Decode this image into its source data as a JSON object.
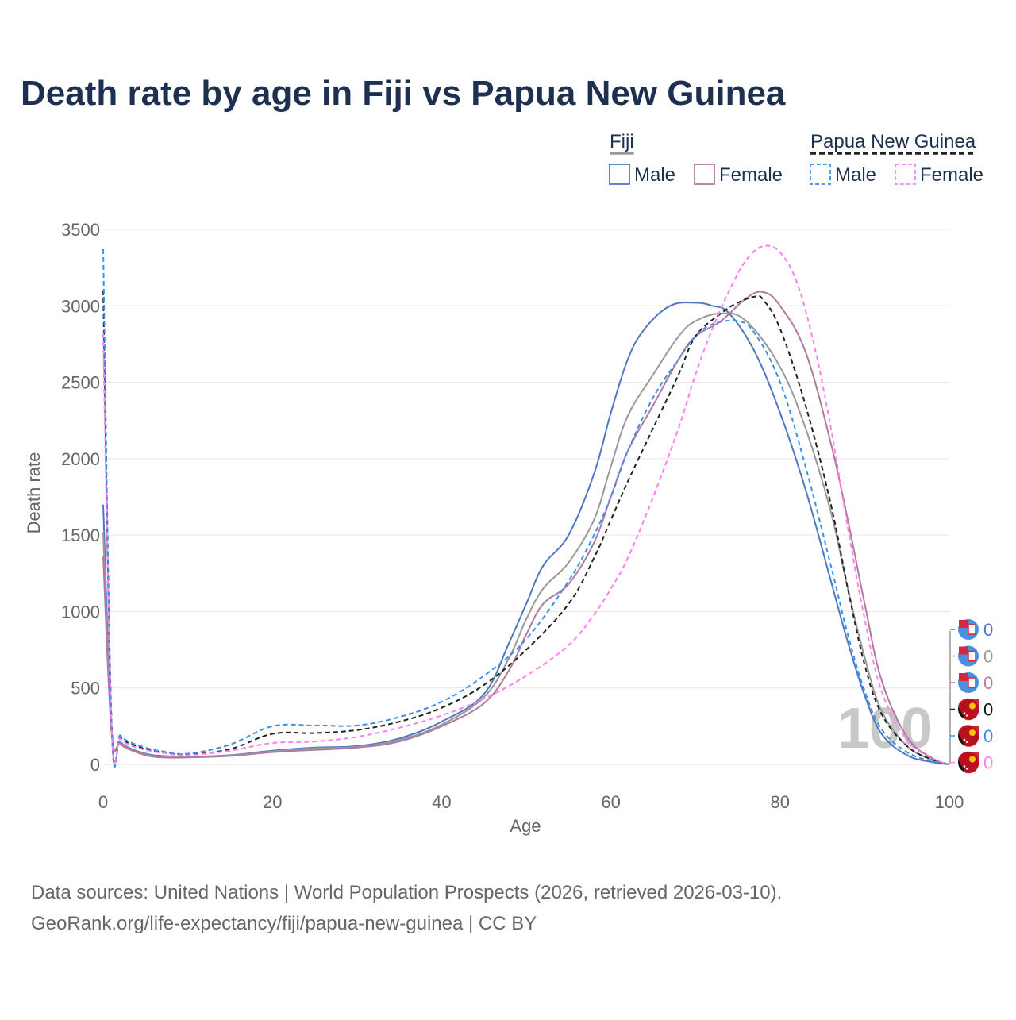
{
  "chart_data": {
    "type": "line",
    "title": "Death rate by age in Fiji vs Papua New Guinea",
    "xlabel": "Age",
    "ylabel": "Death rate",
    "xlim": [
      0,
      100
    ],
    "ylim": [
      0,
      3500
    ],
    "x_ticks": [
      0,
      20,
      40,
      60,
      80,
      100
    ],
    "y_ticks": [
      0,
      500,
      1000,
      1500,
      2000,
      2500,
      3000,
      3500
    ],
    "grid": true,
    "watermark_year": "100",
    "legend": {
      "position": "top-right",
      "groups": [
        {
          "label": "Fiji",
          "line_color": "#999999",
          "dashed": false,
          "items": [
            {
              "label": "Male",
              "color": "#4e79c0"
            },
            {
              "label": "Female",
              "color": "#b07aa1"
            }
          ]
        },
        {
          "label": "Papua New Guinea",
          "line_color": "#222222",
          "dashed": true,
          "items": [
            {
              "label": "Male",
              "color": "#3b8fe8"
            },
            {
              "label": "Female",
              "color": "#ff80ec"
            }
          ]
        }
      ]
    },
    "series": [
      {
        "name": "Fiji Male",
        "color": "#4e79c0",
        "dashed": false,
        "end_label": "0",
        "points": [
          [
            0,
            1700
          ],
          [
            1,
            230
          ],
          [
            2,
            150
          ],
          [
            3,
            110
          ],
          [
            5,
            70
          ],
          [
            7,
            55
          ],
          [
            10,
            50
          ],
          [
            15,
            60
          ],
          [
            20,
            90
          ],
          [
            25,
            110
          ],
          [
            30,
            120
          ],
          [
            35,
            170
          ],
          [
            40,
            280
          ],
          [
            45,
            460
          ],
          [
            48,
            800
          ],
          [
            50,
            1050
          ],
          [
            52,
            1300
          ],
          [
            55,
            1500
          ],
          [
            58,
            1900
          ],
          [
            60,
            2300
          ],
          [
            62,
            2650
          ],
          [
            64,
            2850
          ],
          [
            67,
            3000
          ],
          [
            70,
            3020
          ],
          [
            72,
            3000
          ],
          [
            74,
            2950
          ],
          [
            77,
            2700
          ],
          [
            80,
            2300
          ],
          [
            83,
            1800
          ],
          [
            86,
            1200
          ],
          [
            88,
            800
          ],
          [
            90,
            450
          ],
          [
            92,
            200
          ],
          [
            95,
            60
          ],
          [
            98,
            15
          ],
          [
            100,
            0
          ]
        ]
      },
      {
        "name": "Fiji Total",
        "color": "#999999",
        "dashed": false,
        "end_label": "0",
        "points": [
          [
            0,
            1520
          ],
          [
            1,
            220
          ],
          [
            2,
            145
          ],
          [
            3,
            105
          ],
          [
            5,
            65
          ],
          [
            7,
            50
          ],
          [
            10,
            47
          ],
          [
            15,
            58
          ],
          [
            20,
            85
          ],
          [
            25,
            105
          ],
          [
            30,
            115
          ],
          [
            35,
            160
          ],
          [
            40,
            260
          ],
          [
            45,
            440
          ],
          [
            48,
            700
          ],
          [
            50,
            950
          ],
          [
            52,
            1150
          ],
          [
            55,
            1320
          ],
          [
            58,
            1600
          ],
          [
            60,
            1950
          ],
          [
            62,
            2280
          ],
          [
            65,
            2550
          ],
          [
            68,
            2800
          ],
          [
            70,
            2900
          ],
          [
            73,
            2950
          ],
          [
            76,
            2900
          ],
          [
            80,
            2600
          ],
          [
            83,
            2200
          ],
          [
            86,
            1650
          ],
          [
            88,
            1150
          ],
          [
            90,
            700
          ],
          [
            92,
            350
          ],
          [
            95,
            120
          ],
          [
            98,
            30
          ],
          [
            100,
            0
          ]
        ]
      },
      {
        "name": "Fiji Female",
        "color": "#b07aa1",
        "dashed": false,
        "end_label": "0",
        "points": [
          [
            0,
            1360
          ],
          [
            1,
            200
          ],
          [
            2,
            135
          ],
          [
            3,
            100
          ],
          [
            5,
            60
          ],
          [
            7,
            45
          ],
          [
            10,
            45
          ],
          [
            15,
            55
          ],
          [
            20,
            80
          ],
          [
            25,
            95
          ],
          [
            30,
            110
          ],
          [
            35,
            150
          ],
          [
            40,
            250
          ],
          [
            45,
            400
          ],
          [
            48,
            620
          ],
          [
            50,
            850
          ],
          [
            52,
            1050
          ],
          [
            55,
            1180
          ],
          [
            58,
            1450
          ],
          [
            60,
            1750
          ],
          [
            62,
            2050
          ],
          [
            65,
            2350
          ],
          [
            68,
            2650
          ],
          [
            70,
            2800
          ],
          [
            73,
            2900
          ],
          [
            76,
            3050
          ],
          [
            78,
            3090
          ],
          [
            80,
            3000
          ],
          [
            83,
            2700
          ],
          [
            86,
            2100
          ],
          [
            88,
            1600
          ],
          [
            90,
            1050
          ],
          [
            92,
            550
          ],
          [
            95,
            180
          ],
          [
            98,
            40
          ],
          [
            100,
            0
          ]
        ]
      },
      {
        "name": "Papua New Guinea Total",
        "color": "#222222",
        "dashed": true,
        "end_label": "0",
        "points": [
          [
            0,
            3100
          ],
          [
            1,
            250
          ],
          [
            2,
            180
          ],
          [
            3,
            140
          ],
          [
            5,
            100
          ],
          [
            7,
            80
          ],
          [
            10,
            65
          ],
          [
            15,
            100
          ],
          [
            20,
            200
          ],
          [
            25,
            205
          ],
          [
            30,
            225
          ],
          [
            35,
            280
          ],
          [
            40,
            370
          ],
          [
            45,
            520
          ],
          [
            50,
            750
          ],
          [
            55,
            1050
          ],
          [
            58,
            1350
          ],
          [
            60,
            1600
          ],
          [
            62,
            1850
          ],
          [
            65,
            2200
          ],
          [
            68,
            2550
          ],
          [
            70,
            2800
          ],
          [
            73,
            2950
          ],
          [
            75,
            3020
          ],
          [
            77,
            3060
          ],
          [
            78,
            3040
          ],
          [
            80,
            2850
          ],
          [
            83,
            2350
          ],
          [
            86,
            1700
          ],
          [
            88,
            1150
          ],
          [
            90,
            650
          ],
          [
            92,
            330
          ],
          [
            95,
            120
          ],
          [
            98,
            30
          ],
          [
            100,
            0
          ]
        ]
      },
      {
        "name": "Papua New Guinea Male",
        "color": "#3b8fe8",
        "dashed": true,
        "end_label": "0",
        "points": [
          [
            0,
            3370
          ],
          [
            1,
            250
          ],
          [
            2,
            190
          ],
          [
            3,
            150
          ],
          [
            5,
            110
          ],
          [
            7,
            85
          ],
          [
            10,
            70
          ],
          [
            15,
            130
          ],
          [
            20,
            250
          ],
          [
            25,
            255
          ],
          [
            30,
            255
          ],
          [
            35,
            310
          ],
          [
            40,
            410
          ],
          [
            45,
            580
          ],
          [
            50,
            820
          ],
          [
            55,
            1200
          ],
          [
            58,
            1500
          ],
          [
            60,
            1750
          ],
          [
            62,
            2050
          ],
          [
            65,
            2400
          ],
          [
            68,
            2650
          ],
          [
            70,
            2800
          ],
          [
            72,
            2880
          ],
          [
            75,
            2900
          ],
          [
            77,
            2820
          ],
          [
            80,
            2500
          ],
          [
            83,
            1950
          ],
          [
            86,
            1300
          ],
          [
            88,
            850
          ],
          [
            90,
            480
          ],
          [
            92,
            230
          ],
          [
            95,
            80
          ],
          [
            98,
            20
          ],
          [
            100,
            0
          ]
        ]
      },
      {
        "name": "Papua New Guinea Female",
        "color": "#ff80ec",
        "dashed": true,
        "end_label": "0",
        "points": [
          [
            0,
            2820
          ],
          [
            1,
            240
          ],
          [
            2,
            170
          ],
          [
            3,
            130
          ],
          [
            5,
            95
          ],
          [
            7,
            75
          ],
          [
            10,
            60
          ],
          [
            15,
            90
          ],
          [
            20,
            140
          ],
          [
            25,
            150
          ],
          [
            30,
            180
          ],
          [
            35,
            240
          ],
          [
            40,
            320
          ],
          [
            45,
            430
          ],
          [
            50,
            580
          ],
          [
            55,
            780
          ],
          [
            58,
            980
          ],
          [
            60,
            1150
          ],
          [
            62,
            1350
          ],
          [
            65,
            1750
          ],
          [
            68,
            2200
          ],
          [
            70,
            2550
          ],
          [
            72,
            2850
          ],
          [
            74,
            3100
          ],
          [
            76,
            3300
          ],
          [
            78,
            3390
          ],
          [
            80,
            3350
          ],
          [
            82,
            3150
          ],
          [
            84,
            2750
          ],
          [
            86,
            2200
          ],
          [
            88,
            1550
          ],
          [
            90,
            950
          ],
          [
            92,
            480
          ],
          [
            95,
            160
          ],
          [
            98,
            40
          ],
          [
            100,
            0
          ]
        ]
      }
    ]
  },
  "sources": {
    "line1": "Data sources: United Nations | World Population Prospects (2026, retrieved 2026-03-10).",
    "line2": "GeoRank.org/life-expectancy/fiji/papua-new-guinea | CC BY"
  }
}
